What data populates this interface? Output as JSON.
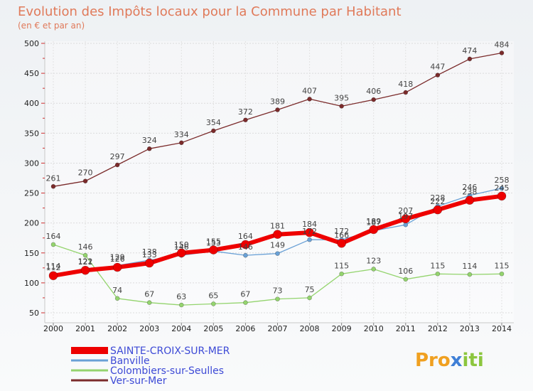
{
  "chart_data": {
    "type": "line",
    "title": "Evolution des Impôts locaux pour la Commune par Habitant",
    "subtitle": "(en € et par an)",
    "x": [
      2000,
      2001,
      2002,
      2003,
      2004,
      2005,
      2006,
      2007,
      2008,
      2009,
      2010,
      2011,
      2012,
      2013,
      2014
    ],
    "ylim": [
      50,
      500
    ],
    "yticks": [
      50,
      100,
      150,
      200,
      250,
      300,
      350,
      400,
      450,
      500
    ],
    "grid": true,
    "legend": "bottom-left",
    "series": [
      {
        "name": "Ver-sur-Mer",
        "color": "#7b2b2b",
        "values": [
          261,
          270,
          297,
          324,
          334,
          354,
          372,
          389,
          407,
          395,
          406,
          418,
          447,
          474,
          484
        ]
      },
      {
        "name": "Colombiers-sur-Seulles",
        "color": "#94d46e",
        "values": [
          164,
          146,
          74,
          67,
          63,
          65,
          67,
          73,
          75,
          115,
          123,
          106,
          115,
          114,
          115
        ]
      },
      {
        "name": "Banville",
        "color": "#6aa1d6",
        "values": [
          114,
          122,
          129,
          138,
          146,
          153,
          146,
          149,
          172,
          172,
          187,
          197,
          228,
          246,
          258
        ]
      },
      {
        "name": "SAINTE-CROIX-SUR-MER",
        "color": "#ee0000",
        "values": [
          112,
          121,
          126,
          133,
          150,
          155,
          164,
          181,
          184,
          166,
          189,
          207,
          222,
          238,
          245
        ]
      }
    ]
  },
  "brand": {
    "prefix": "Pro",
    "x": "x",
    "suffix": "iti"
  }
}
